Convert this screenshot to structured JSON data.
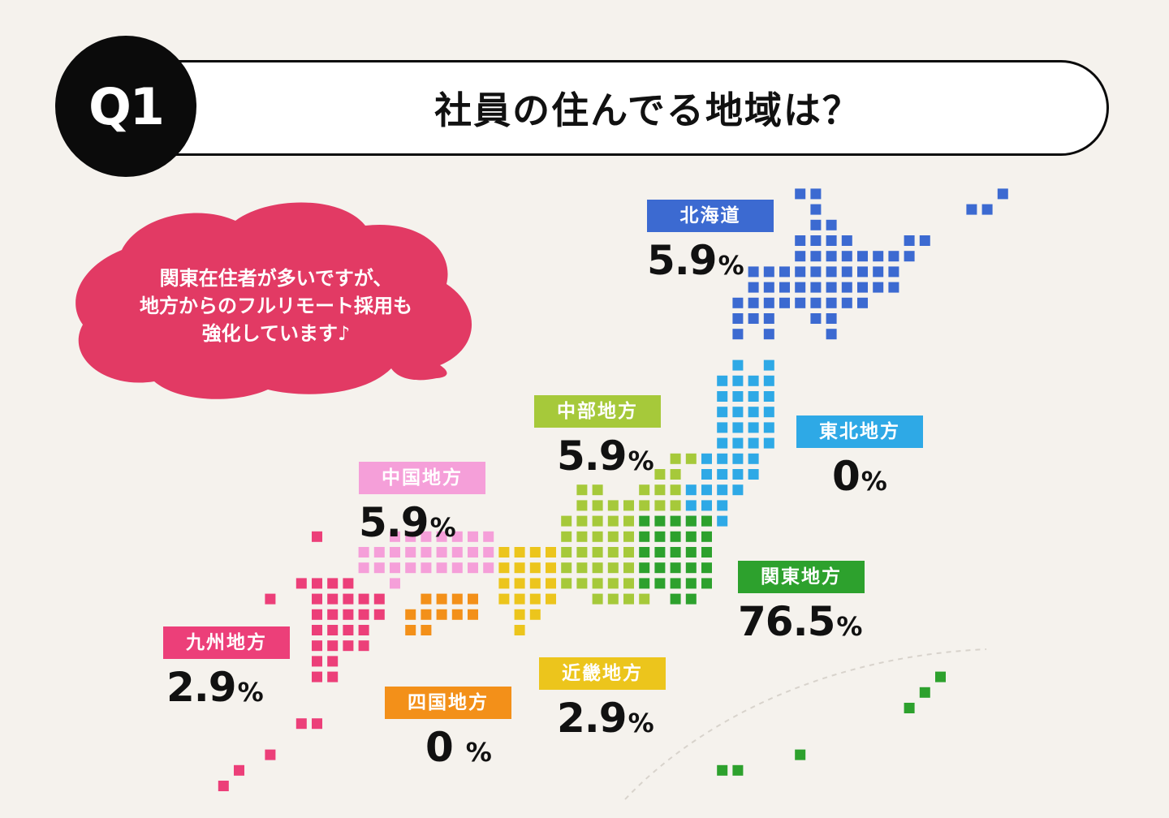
{
  "header": {
    "badge": "Q1",
    "title": "社員の住んでる地域は？"
  },
  "bubble": {
    "text": "関東在住者が多いですが、\n地方からのフルリモート採用も\n強化しています♪",
    "color": "#e23a64"
  },
  "chart_data": {
    "type": "table",
    "title": "社員の住んでる地域は？",
    "unit": "%",
    "regions": [
      {
        "name": "北海道",
        "value": 5.9,
        "display": "5.9",
        "color": "#3c6ad1"
      },
      {
        "name": "東北地方",
        "value": 0,
        "display": "0",
        "color": "#2ea9e6"
      },
      {
        "name": "関東地方",
        "value": 76.5,
        "display": "76.5",
        "color": "#2da12d"
      },
      {
        "name": "中部地方",
        "value": 5.9,
        "display": "5.9",
        "color": "#a6c93a"
      },
      {
        "name": "近畿地方",
        "value": 2.9,
        "display": "2.9",
        "color": "#ecc51c"
      },
      {
        "name": "中国地方",
        "value": 5.9,
        "display": "5.9",
        "color": "#f59fd9"
      },
      {
        "name": "四国地方",
        "value": 0,
        "display": "0",
        "color": "#f39019"
      },
      {
        "name": "九州地方",
        "value": 2.9,
        "display": "2.9",
        "color": "#ec3f79"
      }
    ]
  }
}
